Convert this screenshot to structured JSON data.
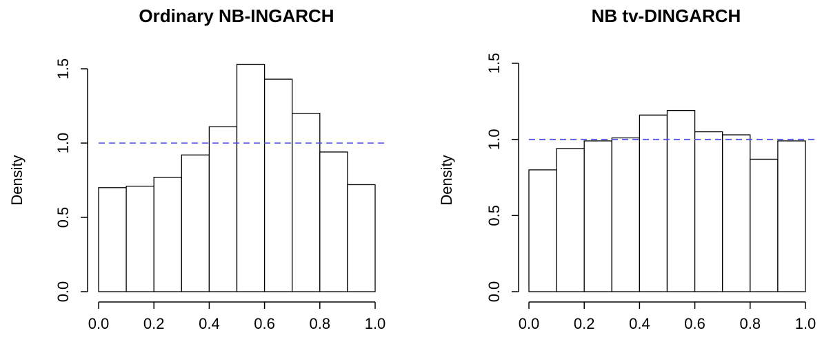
{
  "chart_data": [
    {
      "type": "bar",
      "title": "Ordinary NB-INGARCH",
      "ylabel": "Density",
      "xlabel": "",
      "bin_edges": [
        0.0,
        0.1,
        0.2,
        0.3,
        0.4,
        0.5,
        0.6,
        0.7,
        0.8,
        0.9,
        1.0
      ],
      "values": [
        0.7,
        0.71,
        0.77,
        0.92,
        1.11,
        1.53,
        1.43,
        1.2,
        0.94,
        0.72
      ],
      "reference_line": {
        "y": 1.0,
        "color": "#4a4af0",
        "style": "dashed"
      },
      "xlim": [
        0,
        1
      ],
      "ylim": [
        0,
        1.5
      ],
      "x_ticks": [
        "0.0",
        "0.2",
        "0.4",
        "0.6",
        "0.8",
        "1.0"
      ],
      "y_ticks": [
        "0.0",
        "0.5",
        "1.0",
        "1.5"
      ],
      "grid": false
    },
    {
      "type": "bar",
      "title": "NB tv-DINGARCH",
      "ylabel": "Density",
      "xlabel": "",
      "bin_edges": [
        0.0,
        0.1,
        0.2,
        0.3,
        0.4,
        0.5,
        0.6,
        0.7,
        0.8,
        0.9,
        1.0
      ],
      "values": [
        0.8,
        0.94,
        0.99,
        1.01,
        1.16,
        1.19,
        1.05,
        1.03,
        0.87,
        0.99
      ],
      "reference_line": {
        "y": 1.0,
        "color": "#4a4af0",
        "style": "dashed"
      },
      "xlim": [
        0,
        1
      ],
      "ylim": [
        0,
        1.5
      ],
      "x_ticks": [
        "0.0",
        "0.2",
        "0.4",
        "0.6",
        "0.8",
        "1.0"
      ],
      "y_ticks": [
        "0.0",
        "0.5",
        "1.0",
        "1.5"
      ],
      "grid": false
    }
  ]
}
